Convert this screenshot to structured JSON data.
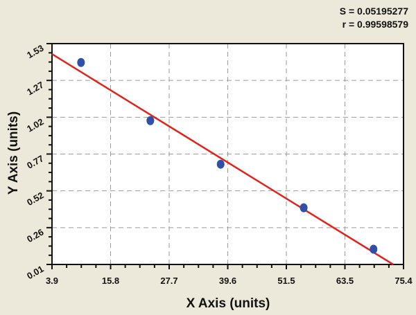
{
  "stats": {
    "s_label": "S = 0.05195277",
    "r_label": "r = 0.99598579"
  },
  "chart_data": {
    "type": "scatter",
    "title": "",
    "xlabel": "X Axis (units)",
    "ylabel": "Y Axis (units)",
    "xlim": [
      3.9,
      75.4
    ],
    "ylim": [
      0.01,
      1.53
    ],
    "x_ticks": [
      "3.9",
      "15.8",
      "27.7",
      "39.6",
      "51.5",
      "63.5",
      "75.4"
    ],
    "y_ticks": [
      "0.01",
      "0.26",
      "0.52",
      "0.77",
      "1.02",
      "1.27",
      "1.53"
    ],
    "grid": true,
    "series": [
      {
        "name": "data points",
        "x": [
          9.8,
          23.9,
          38.2,
          55.1,
          69.3
        ],
        "y": [
          1.4,
          1.0,
          0.7,
          0.4,
          0.115
        ],
        "color": "#3050a8"
      },
      {
        "name": "fit line",
        "type": "line",
        "x": [
          3.9,
          73.3
        ],
        "y": [
          1.458,
          0.01
        ],
        "color": "#e3231b"
      }
    ],
    "annotations": [
      "S = 0.05195277",
      "r = 0.99598579"
    ]
  }
}
